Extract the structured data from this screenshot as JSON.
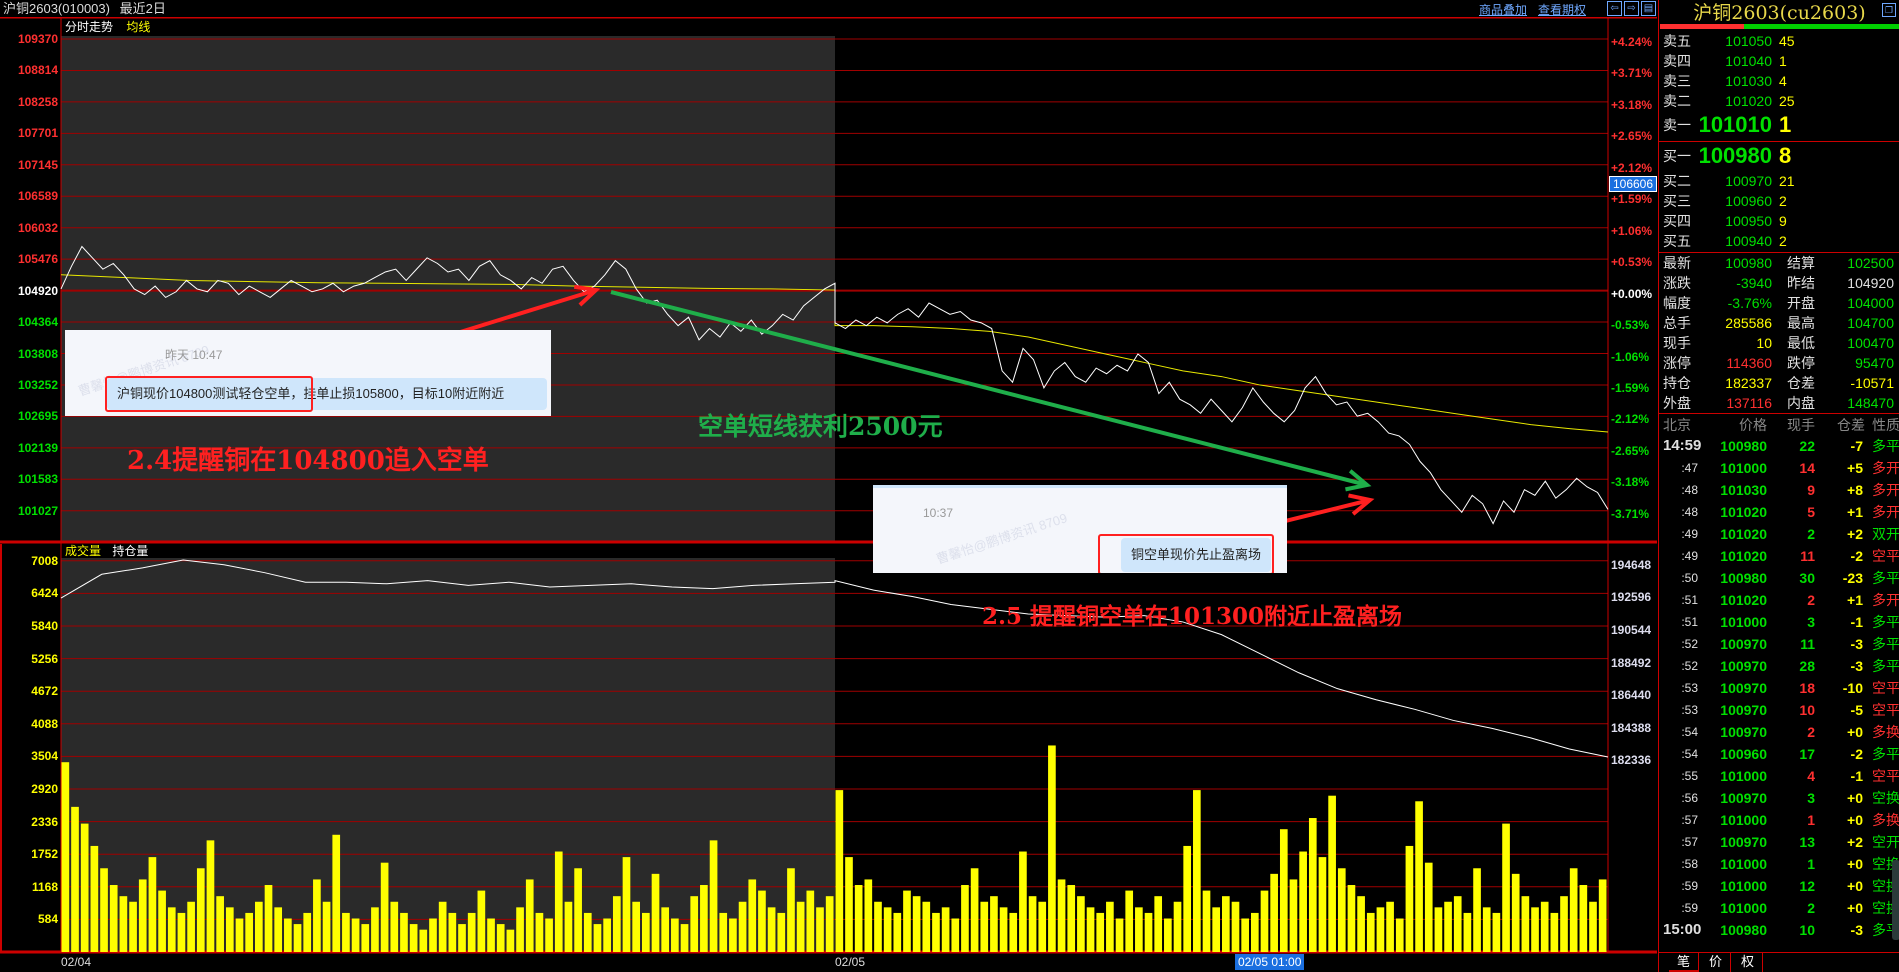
{
  "title": {
    "name": "沪铜2603(010003)",
    "range": "最近2日"
  },
  "toolbar": {
    "overlay": "商品叠加",
    "options": "查看期权",
    "icons": [
      "arrow-left-icon",
      "arrow-right-icon",
      "layout-icon"
    ]
  },
  "price_panel": {
    "tab": "分时走势",
    "avg_label": "均线",
    "price_ticks": [
      "109370",
      "108814",
      "108258",
      "107701",
      "107145",
      "106589",
      "106032",
      "105476",
      "104920",
      "104364",
      "103808",
      "103252",
      "102695",
      "102139",
      "101583",
      "101027"
    ],
    "pct_ticks": [
      "+4.24%",
      "+3.71%",
      "+3.18%",
      "+2.65%",
      "+2.12%",
      "+1.59%",
      "+1.06%",
      "+0.53%",
      "+0.00%",
      "-0.53%",
      "-1.06%",
      "-1.59%",
      "-2.12%",
      "-2.65%",
      "-3.18%",
      "-3.71%"
    ],
    "cursor_price": "106606"
  },
  "volume_panel": {
    "vol_label": "成交量",
    "oi_label": "持仓量",
    "vol_ticks": [
      "7008",
      "6424",
      "5840",
      "5256",
      "4672",
      "4088",
      "3504",
      "2920",
      "2336",
      "1752",
      "1168",
      "584"
    ],
    "oi_ticks": [
      "194648",
      "192596",
      "190544",
      "188492",
      "186440",
      "184388",
      "182336"
    ]
  },
  "time_axis": {
    "labels": [
      "02/04",
      "02/05"
    ],
    "cursor_time": "02/05 01:00"
  },
  "colors": {
    "up": "#ff3030",
    "down": "#00e000",
    "volume": "#ffff00",
    "avg": "#e8e800",
    "grid": "#a00000",
    "day1_bg": "#2a2a2a",
    "profit_arrow": "#1fae4a",
    "alert_arrow": "#ff2020"
  },
  "chart_data": {
    "type": "line",
    "prev_settle": 104920,
    "ylim": [
      101027,
      109370
    ],
    "price_day1": [
      104950,
      105350,
      105700,
      105500,
      105300,
      105400,
      105200,
      104950,
      104850,
      105000,
      104800,
      104900,
      105100,
      104950,
      104900,
      105100,
      105050,
      104850,
      105000,
      104900,
      104800,
      104950,
      105100,
      105000,
      104900,
      104950,
      105050,
      104900,
      105000,
      105050,
      105150,
      105250,
      105300,
      105100,
      105300,
      105500,
      105400,
      105250,
      105300,
      105100,
      105350,
      105450,
      105200,
      105100,
      104950,
      105150,
      105050,
      105300,
      105350,
      105100,
      104900,
      105000,
      105200,
      105450,
      105300,
      104950,
      104700,
      104750,
      104500,
      104300,
      104450,
      104050,
      104250,
      104100,
      104350,
      104200,
      104400,
      104150,
      104300,
      104500,
      104400,
      104650,
      104800,
      104950,
      105050
    ],
    "price_day2": [
      104350,
      104250,
      104400,
      104300,
      104450,
      104350,
      104500,
      104600,
      104450,
      104700,
      104600,
      104500,
      104550,
      104400,
      104350,
      104250,
      103500,
      103300,
      103900,
      103700,
      103200,
      103500,
      103650,
      103400,
      103300,
      103550,
      103450,
      103600,
      103500,
      103800,
      103650,
      103100,
      103300,
      103000,
      102900,
      102750,
      103000,
      102800,
      102600,
      102850,
      103200,
      102950,
      102750,
      102600,
      102800,
      103200,
      103400,
      103100,
      102900,
      102950,
      102700,
      102750,
      102600,
      102400,
      102350,
      102200,
      101900,
      101700,
      101400,
      101200,
      101000,
      101300,
      101150,
      100800,
      101200,
      101000,
      101400,
      101300,
      101550,
      101250,
      101400,
      101600,
      101450,
      101350,
      101050
    ],
    "avg_day1": [
      105200,
      105150,
      105100,
      105080,
      105060,
      105050,
      105040,
      105030,
      105000,
      104980,
      104960,
      104950,
      104930
    ],
    "avg_day2": [
      104300,
      104300,
      104280,
      104250,
      104200,
      104100,
      103950,
      103800,
      103650,
      103500,
      103400,
      103250,
      103150,
      103050,
      102950,
      102850,
      102750,
      102650,
      102550,
      102480,
      102420
    ],
    "oi_day1": [
      192300,
      193800,
      194200,
      194700,
      194400,
      193900,
      193300,
      193300,
      193200,
      193400,
      193100,
      193300,
      193000,
      193100,
      193200,
      193000,
      192900,
      193100,
      193200,
      193300
    ],
    "oi_day2": [
      193400,
      192800,
      192400,
      191900,
      191600,
      191300,
      191200,
      191100,
      191200,
      190800,
      190000,
      188800,
      187600,
      186600,
      185900,
      185300,
      184600,
      184100,
      183500,
      182800,
      182300
    ],
    "volume_day1": [
      3400,
      2600,
      2300,
      1900,
      1500,
      1200,
      1000,
      900,
      1300,
      1700,
      1100,
      800,
      700,
      900,
      1500,
      2000,
      1000,
      800,
      600,
      700,
      900,
      1200,
      800,
      600,
      500,
      700,
      1300,
      900,
      2100,
      700,
      600,
      500,
      800,
      1600,
      900,
      700,
      500,
      400,
      600,
      900,
      700,
      500,
      700,
      1100,
      600,
      500,
      400,
      800,
      1300,
      700,
      600,
      1800,
      900,
      1500,
      700,
      500,
      600,
      1000,
      1700,
      900,
      700,
      1400,
      800,
      600,
      500,
      1000,
      1200,
      2000,
      700,
      600,
      900,
      1300,
      1100,
      800,
      700,
      1500,
      900,
      1100,
      800,
      1000
    ],
    "volume_day2": [
      2900,
      1700,
      1200,
      1300,
      900,
      800,
      700,
      1100,
      1000,
      900,
      700,
      800,
      600,
      1200,
      1500,
      900,
      1000,
      800,
      700,
      1800,
      1000,
      900,
      3700,
      1300,
      1200,
      1000,
      800,
      700,
      900,
      600,
      1100,
      800,
      700,
      1000,
      600,
      900,
      1900,
      2900,
      1100,
      800,
      1000,
      900,
      600,
      700,
      1100,
      1400,
      2200,
      1300,
      1800,
      2400,
      1700,
      2800,
      1500,
      1200,
      1000,
      700,
      800,
      900,
      600,
      1900,
      2700,
      1600,
      800,
      900,
      1000,
      700,
      1500,
      800,
      700,
      2300,
      1400,
      1000,
      800,
      900,
      700,
      1000,
      1500,
      1200,
      900,
      1300
    ]
  },
  "annotations": {
    "note1": {
      "time": "昨天 10:47",
      "message_highlight": "沪铜现价104800测试轻仓空单，",
      "message_rest": "挂单止损105800，目标10附近附近",
      "watermark": "曹馨怡@鹏博资讯 8709"
    },
    "note2": {
      "time": "10:37",
      "message": "铜空单现价先止盈离场",
      "watermark": "曹馨怡@鹏博资讯 8709"
    },
    "label_entry": "2.4提醒铜在104800追入空单",
    "label_profit": "空单短线获利2500元",
    "label_exit": "2.5 提醒铜空单在101300附近止盈离场"
  },
  "quote": {
    "title": "沪铜2603(cu2603)",
    "buy_ratio": 0.35,
    "asks": [
      {
        "label": "卖五",
        "price": "101050",
        "vol": "45"
      },
      {
        "label": "卖四",
        "price": "101040",
        "vol": "1"
      },
      {
        "label": "卖三",
        "price": "101030",
        "vol": "4"
      },
      {
        "label": "卖二",
        "price": "101020",
        "vol": "25"
      },
      {
        "label": "卖一",
        "price": "101010",
        "vol": "1"
      }
    ],
    "bids": [
      {
        "label": "买一",
        "price": "100980",
        "vol": "8"
      },
      {
        "label": "买二",
        "price": "100970",
        "vol": "21"
      },
      {
        "label": "买三",
        "price": "100960",
        "vol": "2"
      },
      {
        "label": "买四",
        "price": "100950",
        "vol": "9"
      },
      {
        "label": "买五",
        "price": "100940",
        "vol": "2"
      }
    ],
    "stats": [
      [
        {
          "k": "最新",
          "v": "100980",
          "c": "g"
        },
        {
          "k": "结算",
          "v": "102500",
          "c": "g"
        }
      ],
      [
        {
          "k": "涨跌",
          "v": "-3940",
          "c": "g"
        },
        {
          "k": "昨结",
          "v": "104920",
          "c": "w"
        }
      ],
      [
        {
          "k": "幅度",
          "v": "-3.76%",
          "c": "g"
        },
        {
          "k": "开盘",
          "v": "104000",
          "c": "g"
        }
      ],
      [
        {
          "k": "总手",
          "v": "285586",
          "c": "y"
        },
        {
          "k": "最高",
          "v": "104700",
          "c": "g"
        }
      ],
      [
        {
          "k": "现手",
          "v": "10",
          "c": "y"
        },
        {
          "k": "最低",
          "v": "100470",
          "c": "g"
        }
      ],
      [
        {
          "k": "涨停",
          "v": "114360",
          "c": "rd"
        },
        {
          "k": "跌停",
          "v": "95470",
          "c": "g"
        }
      ],
      [
        {
          "k": "持仓",
          "v": "182337",
          "c": "y"
        },
        {
          "k": "仓差",
          "v": "-10571",
          "c": "y"
        }
      ],
      [
        {
          "k": "外盘",
          "v": "137116",
          "c": "rd"
        },
        {
          "k": "内盘",
          "v": "148470",
          "c": "g"
        }
      ]
    ],
    "tick_headers": [
      "北京",
      "价格",
      "现手",
      "仓差",
      "性质"
    ],
    "ticks": [
      {
        "t": "14:59",
        "p": "100980",
        "q": "22",
        "d": "-7",
        "n": "多平",
        "c": "g"
      },
      {
        "t": ":47",
        "p": "101000",
        "q": "14",
        "d": "+5",
        "n": "多开",
        "c": "rd"
      },
      {
        "t": ":48",
        "p": "101030",
        "q": "9",
        "d": "+8",
        "n": "多开",
        "c": "rd"
      },
      {
        "t": ":48",
        "p": "101020",
        "q": "5",
        "d": "+1",
        "n": "多开",
        "c": "rd"
      },
      {
        "t": ":49",
        "p": "101020",
        "q": "2",
        "d": "+2",
        "n": "双开",
        "c": "g"
      },
      {
        "t": ":49",
        "p": "101020",
        "q": "11",
        "d": "-2",
        "n": "空平",
        "c": "rd"
      },
      {
        "t": ":50",
        "p": "100980",
        "q": "30",
        "d": "-23",
        "n": "多平",
        "c": "g"
      },
      {
        "t": ":51",
        "p": "101020",
        "q": "2",
        "d": "+1",
        "n": "多开",
        "c": "rd"
      },
      {
        "t": ":51",
        "p": "101000",
        "q": "3",
        "d": "-1",
        "n": "多平",
        "c": "g"
      },
      {
        "t": ":52",
        "p": "100970",
        "q": "11",
        "d": "-3",
        "n": "多平",
        "c": "g"
      },
      {
        "t": ":52",
        "p": "100970",
        "q": "28",
        "d": "-3",
        "n": "多平",
        "c": "g"
      },
      {
        "t": ":53",
        "p": "100970",
        "q": "18",
        "d": "-10",
        "n": "空平",
        "c": "rd"
      },
      {
        "t": ":53",
        "p": "100970",
        "q": "10",
        "d": "-5",
        "n": "空平",
        "c": "rd"
      },
      {
        "t": ":54",
        "p": "100970",
        "q": "2",
        "d": "+0",
        "n": "多换",
        "c": "rd"
      },
      {
        "t": ":54",
        "p": "100960",
        "q": "17",
        "d": "-2",
        "n": "多平",
        "c": "g"
      },
      {
        "t": ":55",
        "p": "101000",
        "q": "4",
        "d": "-1",
        "n": "空平",
        "c": "rd"
      },
      {
        "t": ":56",
        "p": "100970",
        "q": "3",
        "d": "+0",
        "n": "空换",
        "c": "g"
      },
      {
        "t": ":57",
        "p": "101000",
        "q": "1",
        "d": "+0",
        "n": "多换",
        "c": "rd"
      },
      {
        "t": ":57",
        "p": "100970",
        "q": "13",
        "d": "+2",
        "n": "空开",
        "c": "g"
      },
      {
        "t": ":58",
        "p": "101000",
        "q": "1",
        "d": "+0",
        "n": "空换",
        "c": "g"
      },
      {
        "t": ":59",
        "p": "101000",
        "q": "12",
        "d": "+0",
        "n": "空换",
        "c": "g"
      },
      {
        "t": ":59",
        "p": "101000",
        "q": "2",
        "d": "+0",
        "n": "空换",
        "c": "g"
      },
      {
        "t": "15:00",
        "p": "100980",
        "q": "10",
        "d": "-3",
        "n": "多平",
        "c": "g"
      }
    ],
    "tabs": [
      "笔",
      "价",
      "权"
    ]
  }
}
